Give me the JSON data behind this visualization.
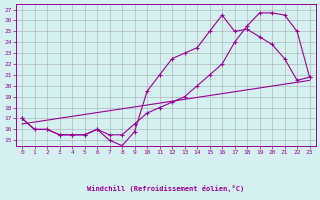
{
  "xlabel": "Windchill (Refroidissement éolien,°C)",
  "xlim": [
    -0.5,
    23.5
  ],
  "ylim": [
    14.5,
    27.5
  ],
  "xticks": [
    0,
    1,
    2,
    3,
    4,
    5,
    6,
    7,
    8,
    9,
    10,
    11,
    12,
    13,
    14,
    15,
    16,
    17,
    18,
    19,
    20,
    21,
    22,
    23
  ],
  "yticks": [
    15,
    16,
    17,
    18,
    19,
    20,
    21,
    22,
    23,
    24,
    25,
    26,
    27
  ],
  "bg_color": "#d4f0f0",
  "line_color": "#990099",
  "line1_x": [
    0,
    1,
    2,
    3,
    4,
    5,
    6,
    7,
    8,
    9,
    10,
    11,
    12,
    13,
    14,
    15,
    16,
    17,
    18,
    19,
    20,
    21,
    22,
    23
  ],
  "line1_y": [
    17,
    16,
    16,
    15.5,
    15.5,
    15.5,
    16,
    15,
    14.5,
    15.8,
    19.5,
    21,
    22.5,
    23,
    23.5,
    25,
    26.5,
    25,
    25.2,
    24.5,
    23.8,
    22.5,
    20.5,
    20.8
  ],
  "line2_x": [
    0,
    1,
    2,
    3,
    4,
    5,
    6,
    7,
    8,
    9,
    10,
    11,
    12,
    13,
    14,
    15,
    16,
    17,
    18,
    19,
    20,
    21,
    22,
    23
  ],
  "line2_y": [
    17,
    16,
    16,
    15.5,
    15.5,
    15.5,
    16,
    15.5,
    15.5,
    16.5,
    17.5,
    18,
    18.5,
    19,
    20,
    21,
    22,
    24,
    25.5,
    26.7,
    26.7,
    26.5,
    25,
    20.8
  ],
  "line3_x": [
    0,
    23
  ],
  "line3_y": [
    16.5,
    20.5
  ],
  "figsize": [
    3.2,
    2.0
  ],
  "dpi": 100
}
